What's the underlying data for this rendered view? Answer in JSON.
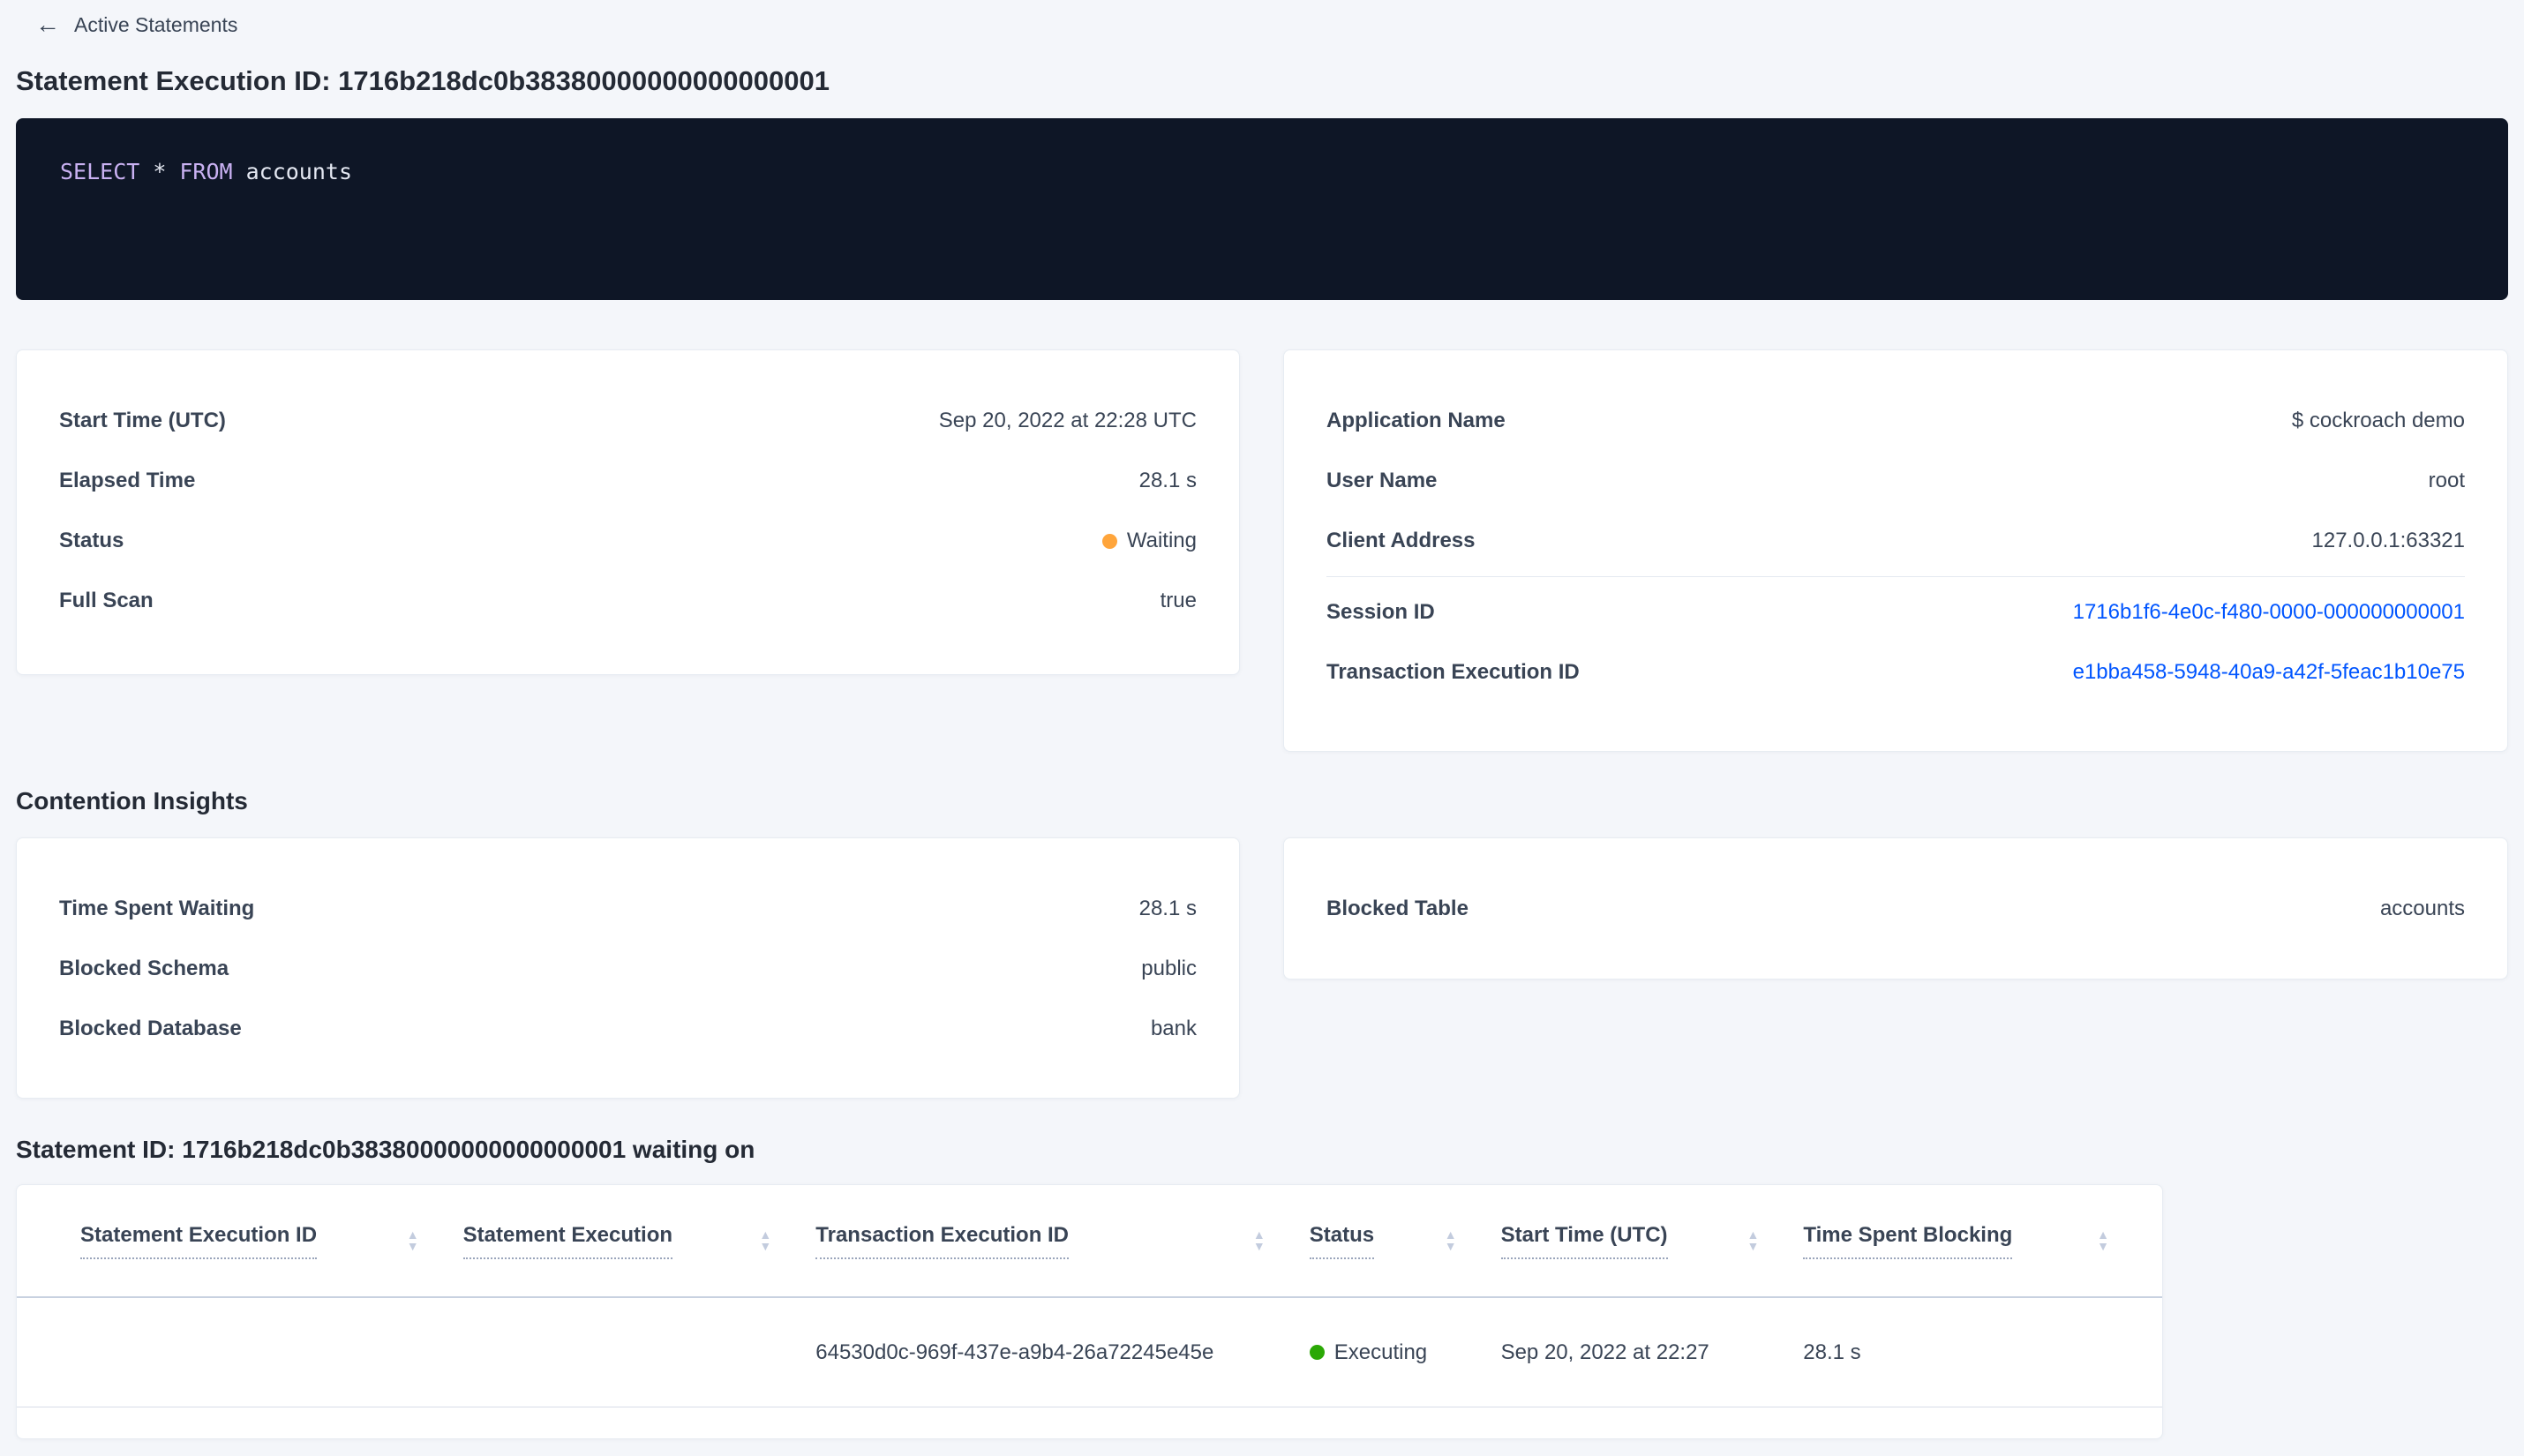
{
  "colors": {
    "page_bg": "#f4f6fa",
    "code_bg": "#0e1626",
    "keyword": "#c9b1f2",
    "code_text": "#e4e8f2",
    "link": "#0055ff",
    "status_waiting": "#ffa53b",
    "status_executing": "#2ba805"
  },
  "header": {
    "back_label": "Active Statements",
    "back_arrow": "←",
    "title": "Statement Execution ID: 1716b218dc0b38380000000000000001"
  },
  "sql": {
    "kw_select": "SELECT",
    "op_star": "*",
    "kw_from": "FROM",
    "table_name": "accounts"
  },
  "overview_left": {
    "rows": [
      {
        "label": "Start Time (UTC)",
        "value": "Sep 20, 2022 at 22:28 UTC"
      },
      {
        "label": "Elapsed Time",
        "value": "28.1 s"
      },
      {
        "label": "Status",
        "value": "Waiting"
      },
      {
        "label": "Full Scan",
        "value": "true"
      }
    ]
  },
  "overview_right": {
    "rows": [
      {
        "label": "Application Name",
        "value": "$ cockroach demo"
      },
      {
        "label": "User Name",
        "value": "root"
      },
      {
        "label": "Client Address",
        "value": "127.0.0.1:63321"
      }
    ],
    "links": [
      {
        "label": "Session ID",
        "value": "1716b1f6-4e0c-f480-0000-000000000001"
      },
      {
        "label": "Transaction Execution ID",
        "value": "e1bba458-5948-40a9-a42f-5feac1b10e75"
      }
    ]
  },
  "contention": {
    "heading": "Contention Insights",
    "left_rows": [
      {
        "label": "Time Spent Waiting",
        "value": "28.1 s"
      },
      {
        "label": "Blocked Schema",
        "value": "public"
      },
      {
        "label": "Blocked Database",
        "value": "bank"
      }
    ],
    "right_rows": [
      {
        "label": "Blocked Table",
        "value": "accounts"
      }
    ]
  },
  "waiting_on": {
    "heading": "Statement ID: 1716b218dc0b38380000000000000001 waiting on",
    "columns": [
      "Statement Execution ID",
      "Statement Execution",
      "Transaction Execution ID",
      "Status",
      "Start Time (UTC)",
      "Time Spent Blocking"
    ],
    "row": {
      "statement_execution_id": "",
      "statement_execution": "",
      "transaction_execution_id": "64530d0c-969f-437e-a9b4-26a72245e45e",
      "status": "Executing",
      "start_time": "Sep 20, 2022 at 22:27",
      "time_spent_blocking": "28.1 s"
    }
  }
}
